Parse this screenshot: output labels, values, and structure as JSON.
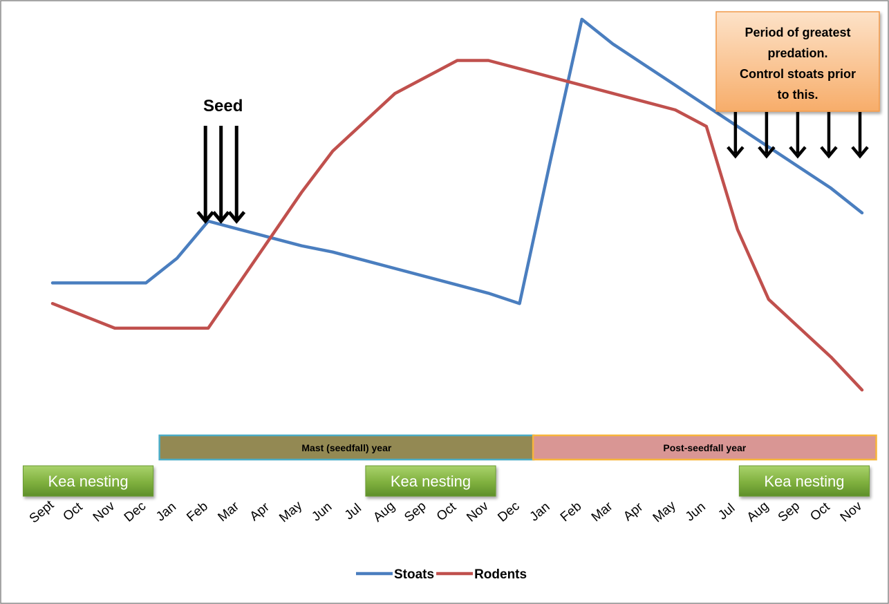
{
  "chart_data": {
    "type": "line",
    "title": "",
    "xlabel": "",
    "ylabel": "",
    "ylim": [
      0,
      100
    ],
    "grid": false,
    "legend_position": "bottom",
    "categories": [
      "Sept",
      "Oct",
      "Nov",
      "Dec",
      "Jan",
      "Feb",
      "Mar",
      "Apr",
      "May",
      "Jun",
      "Jul",
      "Aug",
      "Sep",
      "Oct",
      "Nov",
      "Dec",
      "Jan",
      "Feb",
      "Mar",
      "Apr",
      "May",
      "Jun",
      "Jul",
      "Aug",
      "Sep",
      "Oct",
      "Nov"
    ],
    "series": [
      {
        "name": "Stoats",
        "color": "#4a7ebf",
        "values": [
          34,
          34,
          34,
          34,
          40,
          49,
          47,
          45,
          43,
          41.5,
          39.5,
          37.5,
          35.5,
          33.5,
          31.5,
          29,
          64,
          98,
          92,
          87,
          82,
          77,
          72,
          67,
          62,
          57,
          51
        ]
      },
      {
        "name": "Rodents",
        "color": "#c0504d",
        "values": [
          29,
          26,
          23,
          23,
          23,
          23,
          34,
          45,
          56,
          66,
          73,
          80,
          84,
          88,
          88,
          86,
          84,
          82,
          80,
          78,
          76,
          72,
          47,
          30,
          23,
          16,
          8
        ]
      }
    ],
    "annotations": {
      "seed_label": "Seed",
      "seed_arrows_at_index": [
        5,
        5.5,
        6
      ],
      "predation_note": [
        "Period of greatest",
        "predation.",
        "Control stoats  prior",
        "to this."
      ],
      "predation_arrows_at_index": [
        22,
        23,
        24,
        25,
        26
      ],
      "mast_band": {
        "label": "Mast  (seedfall) year",
        "from_index": 4,
        "to_index": 15,
        "color": "#938953",
        "border": "#4bacc6"
      },
      "post_band": {
        "label": "Post-seedfall year",
        "from_index": 16,
        "to_index": 26,
        "color": "#d99694",
        "border": "#f7b53b"
      },
      "kea_nesting": [
        {
          "label": "Kea nesting",
          "from_index": 0,
          "to_index": 3
        },
        {
          "label": "Kea nesting",
          "from_index": 11,
          "to_index": 14
        },
        {
          "label": "Kea nesting",
          "from_index": 23,
          "to_index": 26
        }
      ]
    }
  }
}
